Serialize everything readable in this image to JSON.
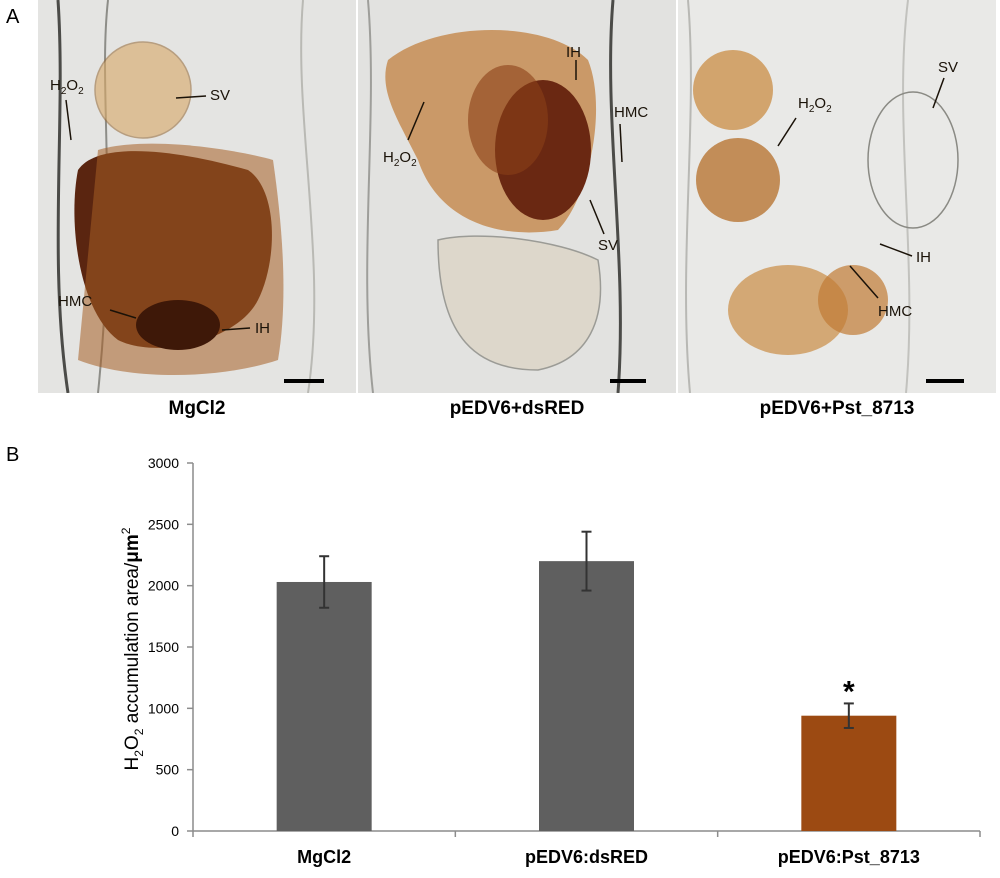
{
  "panels": {
    "a_label": "A",
    "b_label": "B"
  },
  "micrographs": [
    {
      "caption": "MgCl2",
      "annotations": {
        "h2o2": "H",
        "h2o2_sub1": "2",
        "h2o2_o": "O",
        "h2o2_sub2": "2",
        "sv": "SV",
        "hmc": "HMC",
        "ih": "IH"
      }
    },
    {
      "caption": "pEDV6+dsRED",
      "annotations": {
        "h2o2": "H",
        "h2o2_sub1": "2",
        "h2o2_o": "O",
        "h2o2_sub2": "2",
        "sv": "SV",
        "hmc": "HMC",
        "ih": "IH"
      }
    },
    {
      "caption": "pEDV6+Pst_8713",
      "annotations": {
        "h2o2": "H",
        "h2o2_sub1": "2",
        "h2o2_o": "O",
        "h2o2_sub2": "2",
        "sv": "SV",
        "hmc": "HMC",
        "ih": "IH"
      }
    }
  ],
  "colors": {
    "control_bar": "#5f5f5f",
    "treatment_bar": "#9c4a12",
    "stain_dark": "#5a2510",
    "stain_light": "#c9893e",
    "background_cell": "#e6e6e4"
  },
  "chart_data": {
    "type": "bar",
    "categories": [
      "MgCl2",
      "pEDV6:dsRED",
      "pEDV6:Pst_8713"
    ],
    "values": [
      2030,
      2200,
      940
    ],
    "errors": [
      210,
      240,
      100
    ],
    "significance": [
      "",
      "",
      "*"
    ],
    "ylim": [
      0,
      3000
    ],
    "yticks": [
      0,
      500,
      1000,
      1500,
      2000,
      2500,
      3000
    ],
    "ylabel_parts": {
      "h": "H",
      "sub1": "2",
      "o": "O",
      "sub2": "2",
      "rest": " accumulation area/",
      "unit": "μm",
      "sup": "2"
    },
    "xlabel": "",
    "grid": false
  }
}
